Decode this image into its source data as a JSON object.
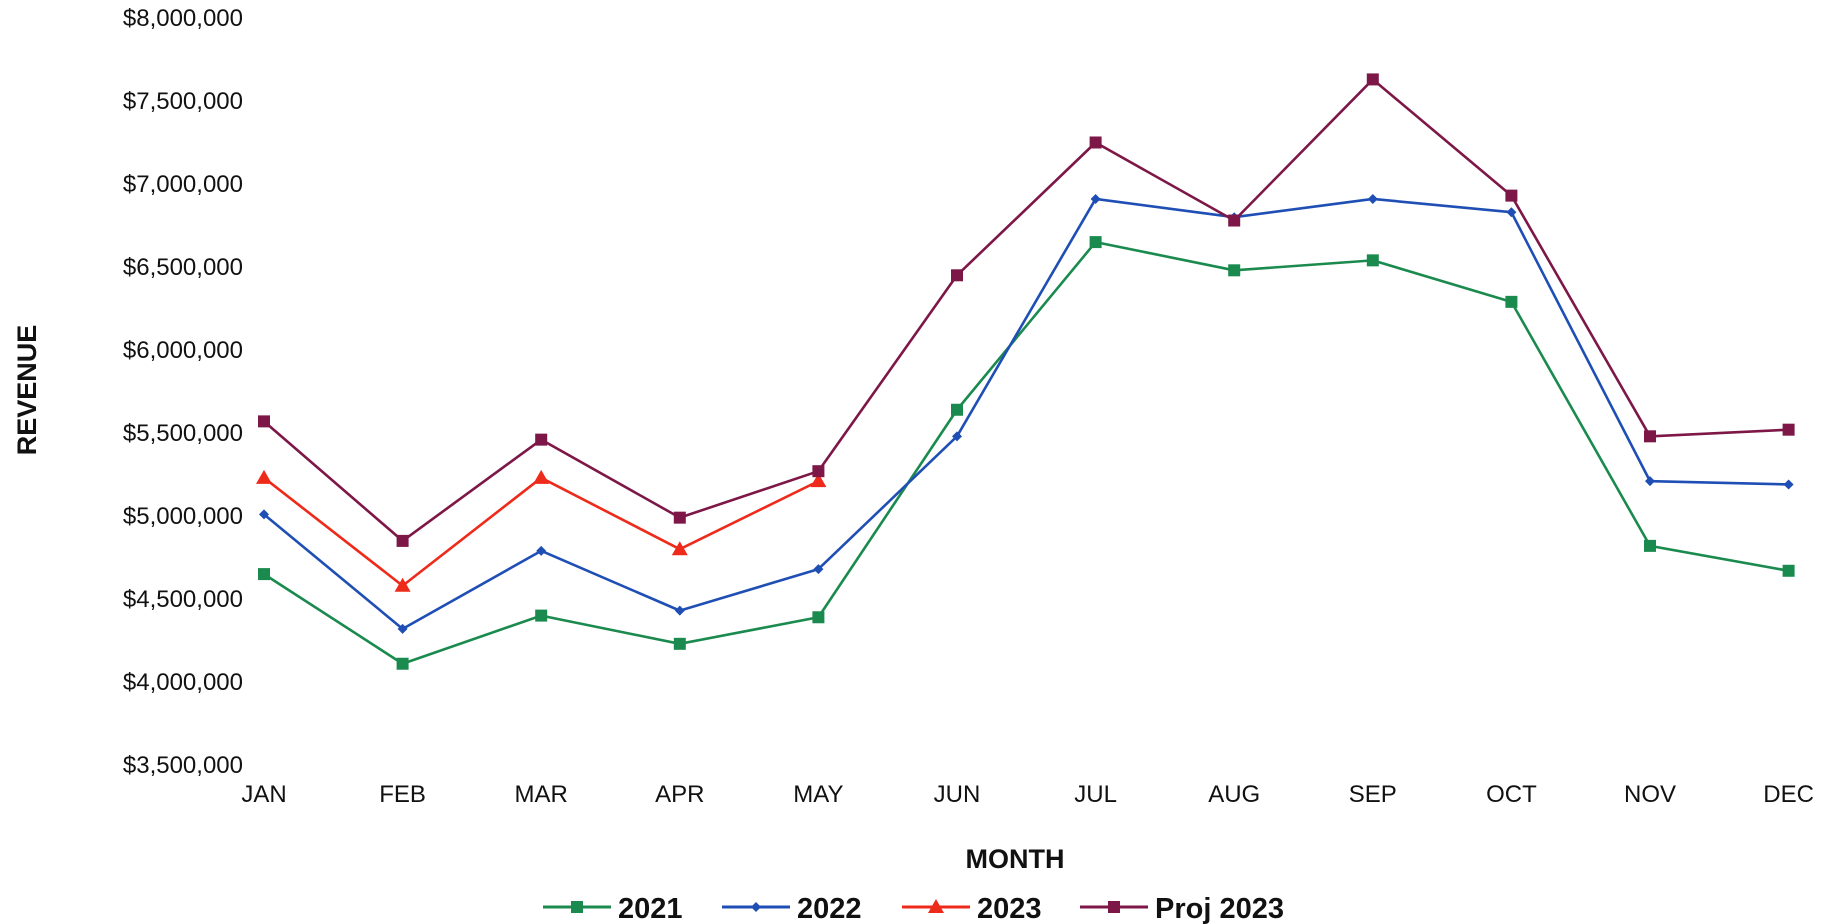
{
  "chart_data": {
    "type": "line",
    "title": "",
    "xlabel": "MONTH",
    "ylabel": "REVENUE",
    "categories": [
      "JAN",
      "FEB",
      "MAR",
      "APR",
      "MAY",
      "JUN",
      "JUL",
      "AUG",
      "SEP",
      "OCT",
      "NOV",
      "DEC"
    ],
    "ylim": [
      3500000,
      8000000
    ],
    "yticks": [
      3500000,
      4000000,
      4500000,
      5000000,
      5500000,
      6000000,
      6500000,
      7000000,
      7500000,
      8000000
    ],
    "ytick_labels": [
      "$3,500,000",
      "$4,000,000",
      "$4,500,000",
      "$5,000,000",
      "$5,500,000",
      "$6,000,000",
      "$6,500,000",
      "$7,000,000",
      "$7,500,000",
      "$8,000,000"
    ],
    "grid": false,
    "legend_position": "bottom",
    "series": [
      {
        "name": "2021",
        "color": "#1b8a4e",
        "marker": "square",
        "values": [
          4650000,
          4110000,
          4400000,
          4230000,
          4390000,
          5640000,
          6650000,
          6480000,
          6540000,
          6290000,
          4820000,
          4670000
        ]
      },
      {
        "name": "2022",
        "color": "#1f4fb4",
        "marker": "diamond",
        "values": [
          5010000,
          4320000,
          4790000,
          4430000,
          4680000,
          5480000,
          6910000,
          6800000,
          6910000,
          6830000,
          5210000,
          5190000
        ]
      },
      {
        "name": "2023",
        "color": "#ee2a1a",
        "marker": "triangle",
        "values": [
          5230000,
          4580000,
          5230000,
          4800000,
          5210000,
          null,
          null,
          null,
          null,
          null,
          null,
          null
        ]
      },
      {
        "name": "Proj 2023",
        "color": "#7d1747",
        "marker": "square",
        "values": [
          5570000,
          4850000,
          5460000,
          4990000,
          5270000,
          6450000,
          7250000,
          6780000,
          7630000,
          6930000,
          5480000,
          5520000
        ]
      }
    ]
  }
}
